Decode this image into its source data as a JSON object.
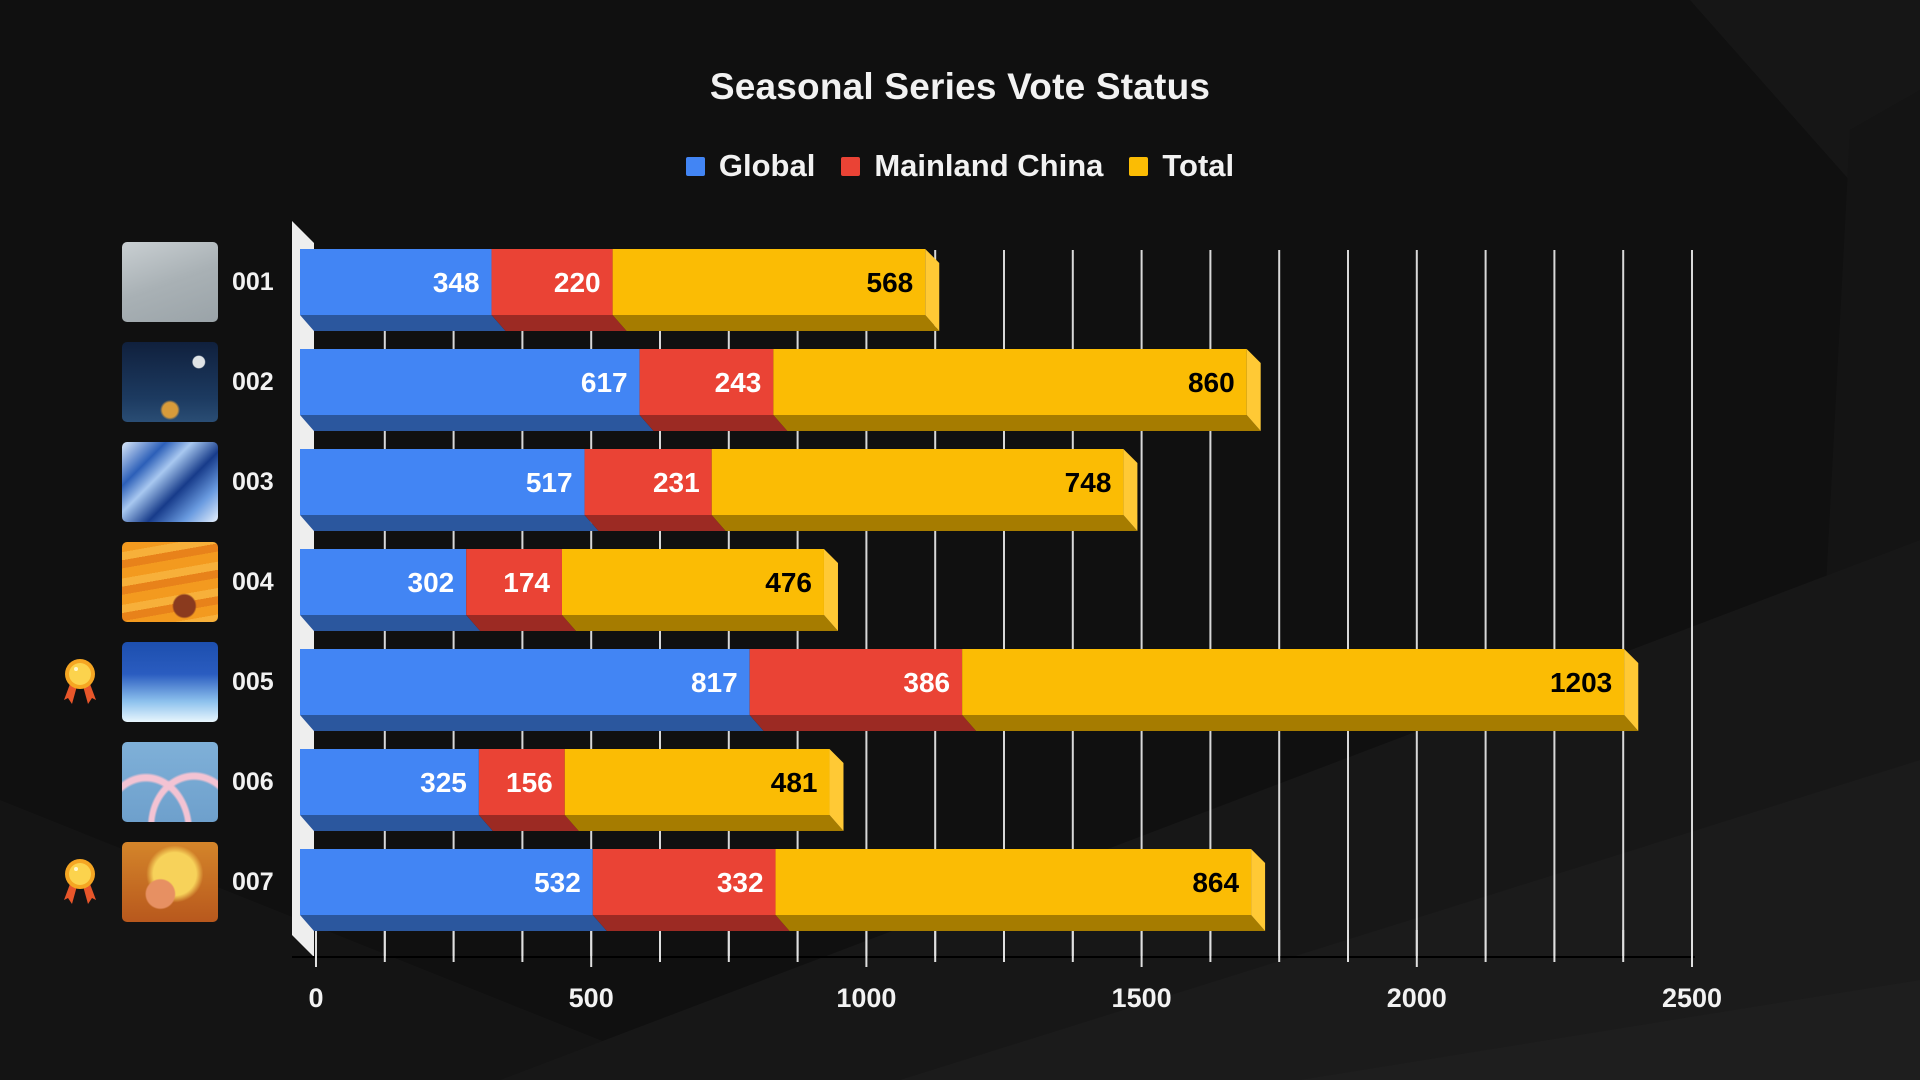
{
  "colors": {
    "background": "#101010",
    "global": "#4285F4",
    "global_shade": "#2B579E",
    "mainland": "#EA4335",
    "mainland_shade": "#9C2A23",
    "total": "#FBBC04",
    "total_shade": "#A67C00",
    "total_side": "#FFC935",
    "wall": "#EEEEEE",
    "text": "#F2F2F2"
  },
  "chart_data": {
    "type": "bar",
    "orientation": "horizontal",
    "stacked": true,
    "three_d": true,
    "title": "Seasonal Series Vote Status",
    "legend_position": "top",
    "legend": [
      "Global",
      "Mainland China",
      "Total"
    ],
    "categories": [
      "001",
      "002",
      "003",
      "004",
      "005",
      "006",
      "007"
    ],
    "series": [
      {
        "name": "Global",
        "values": [
          348,
          617,
          517,
          302,
          817,
          325,
          532
        ]
      },
      {
        "name": "Mainland China",
        "values": [
          220,
          243,
          231,
          174,
          386,
          156,
          332
        ]
      },
      {
        "name": "Total",
        "values": [
          568,
          860,
          748,
          476,
          1203,
          481,
          864
        ]
      }
    ],
    "xlim": [
      0,
      2500
    ],
    "x_ticks": [
      "0",
      "500",
      "1000",
      "1500",
      "2000",
      "2500"
    ],
    "x_tick_values": [
      0,
      500,
      1000,
      1500,
      2000,
      2500
    ],
    "minor_grid_step": 125,
    "grid": true,
    "xlabel": "",
    "ylabel": "",
    "thumbnails": [
      {
        "id": "001",
        "icon": "grey-mousepad-thumbnail",
        "medal": false
      },
      {
        "id": "002",
        "icon": "night-sky-mousepad-thumbnail",
        "medal": false
      },
      {
        "id": "003",
        "icon": "blue-marble-mousepad-thumbnail",
        "medal": false
      },
      {
        "id": "004",
        "icon": "orange-camp-mousepad-thumbnail",
        "medal": false
      },
      {
        "id": "005",
        "icon": "blue-ocean-mousepad-thumbnail",
        "medal": true
      },
      {
        "id": "006",
        "icon": "blue-pink-wave-mousepad-thumbnail",
        "medal": false
      },
      {
        "id": "007",
        "icon": "autumn-squirrel-mousepad-thumbnail",
        "medal": true
      }
    ],
    "medal_icon": "award-medal-icon"
  }
}
